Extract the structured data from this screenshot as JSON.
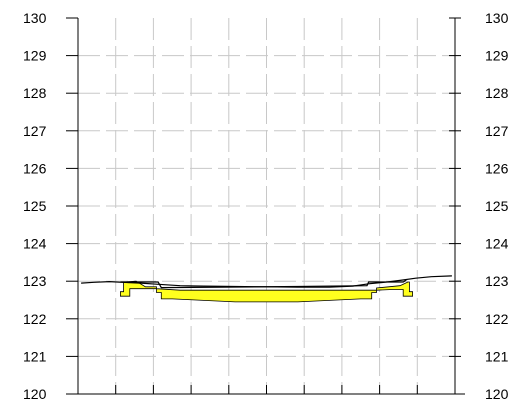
{
  "chart_data": {
    "type": "area",
    "ylim": [
      120,
      130
    ],
    "y_ticks": [
      "120",
      "121",
      "122",
      "123",
      "124",
      "125",
      "126",
      "127",
      "128",
      "129",
      "130"
    ],
    "grid": true,
    "series": [
      {
        "role": "ground_line",
        "values": [
          [
            -118,
            122.95
          ],
          [
            -110,
            122.97
          ],
          [
            -100,
            122.99
          ],
          [
            -92,
            122.97
          ],
          [
            -80,
            122.95
          ],
          [
            -70,
            122.92
          ],
          [
            -55,
            122.88
          ],
          [
            -40,
            122.87
          ],
          [
            -20,
            122.86
          ],
          [
            0,
            122.85
          ],
          [
            20,
            122.84
          ],
          [
            40,
            122.84
          ],
          [
            55,
            122.87
          ],
          [
            65,
            122.93
          ],
          [
            75,
            122.97
          ],
          [
            85,
            123.02
          ],
          [
            95,
            123.08
          ],
          [
            105,
            123.12
          ],
          [
            118,
            123.14
          ]
        ]
      },
      {
        "role": "design_profile_top",
        "values": [
          [
            -93,
            122.98
          ],
          [
            -69,
            122.98
          ],
          [
            -67,
            122.83
          ],
          [
            20,
            122.86
          ],
          [
            64,
            122.88
          ],
          [
            65,
            122.98
          ],
          [
            87,
            122.98
          ],
          [
            89,
            123.03
          ]
        ]
      },
      {
        "role": "section_fill",
        "values": [
          [
            -93,
            122.6
          ],
          [
            -93,
            122.72
          ],
          [
            -91,
            122.72
          ],
          [
            -91,
            122.98
          ],
          [
            -83,
            123.0
          ],
          [
            -77,
            122.85
          ],
          [
            -70,
            122.85
          ],
          [
            -70,
            122.7
          ],
          [
            -67,
            122.7
          ],
          [
            -67,
            122.53
          ],
          [
            -60,
            122.53
          ],
          [
            -20,
            122.45
          ],
          [
            20,
            122.45
          ],
          [
            60,
            122.53
          ],
          [
            67,
            122.53
          ],
          [
            67,
            122.7
          ],
          [
            70,
            122.7
          ],
          [
            70,
            122.82
          ],
          [
            85,
            122.88
          ],
          [
            90,
            122.98
          ],
          [
            91,
            122.98
          ],
          [
            91,
            122.72
          ],
          [
            93,
            122.72
          ],
          [
            93,
            122.6
          ],
          [
            87,
            122.6
          ],
          [
            87,
            122.78
          ],
          [
            80,
            122.78
          ],
          [
            70,
            122.76
          ],
          [
            55,
            122.76
          ],
          [
            20,
            122.76
          ],
          [
            -55,
            122.76
          ],
          [
            -70,
            122.8
          ],
          [
            -87,
            122.8
          ],
          [
            -87,
            122.6
          ]
        ]
      }
    ],
    "colors": {
      "fill": "#ffff1e",
      "stroke": "#000000",
      "grid": "#c8c8c8"
    }
  }
}
